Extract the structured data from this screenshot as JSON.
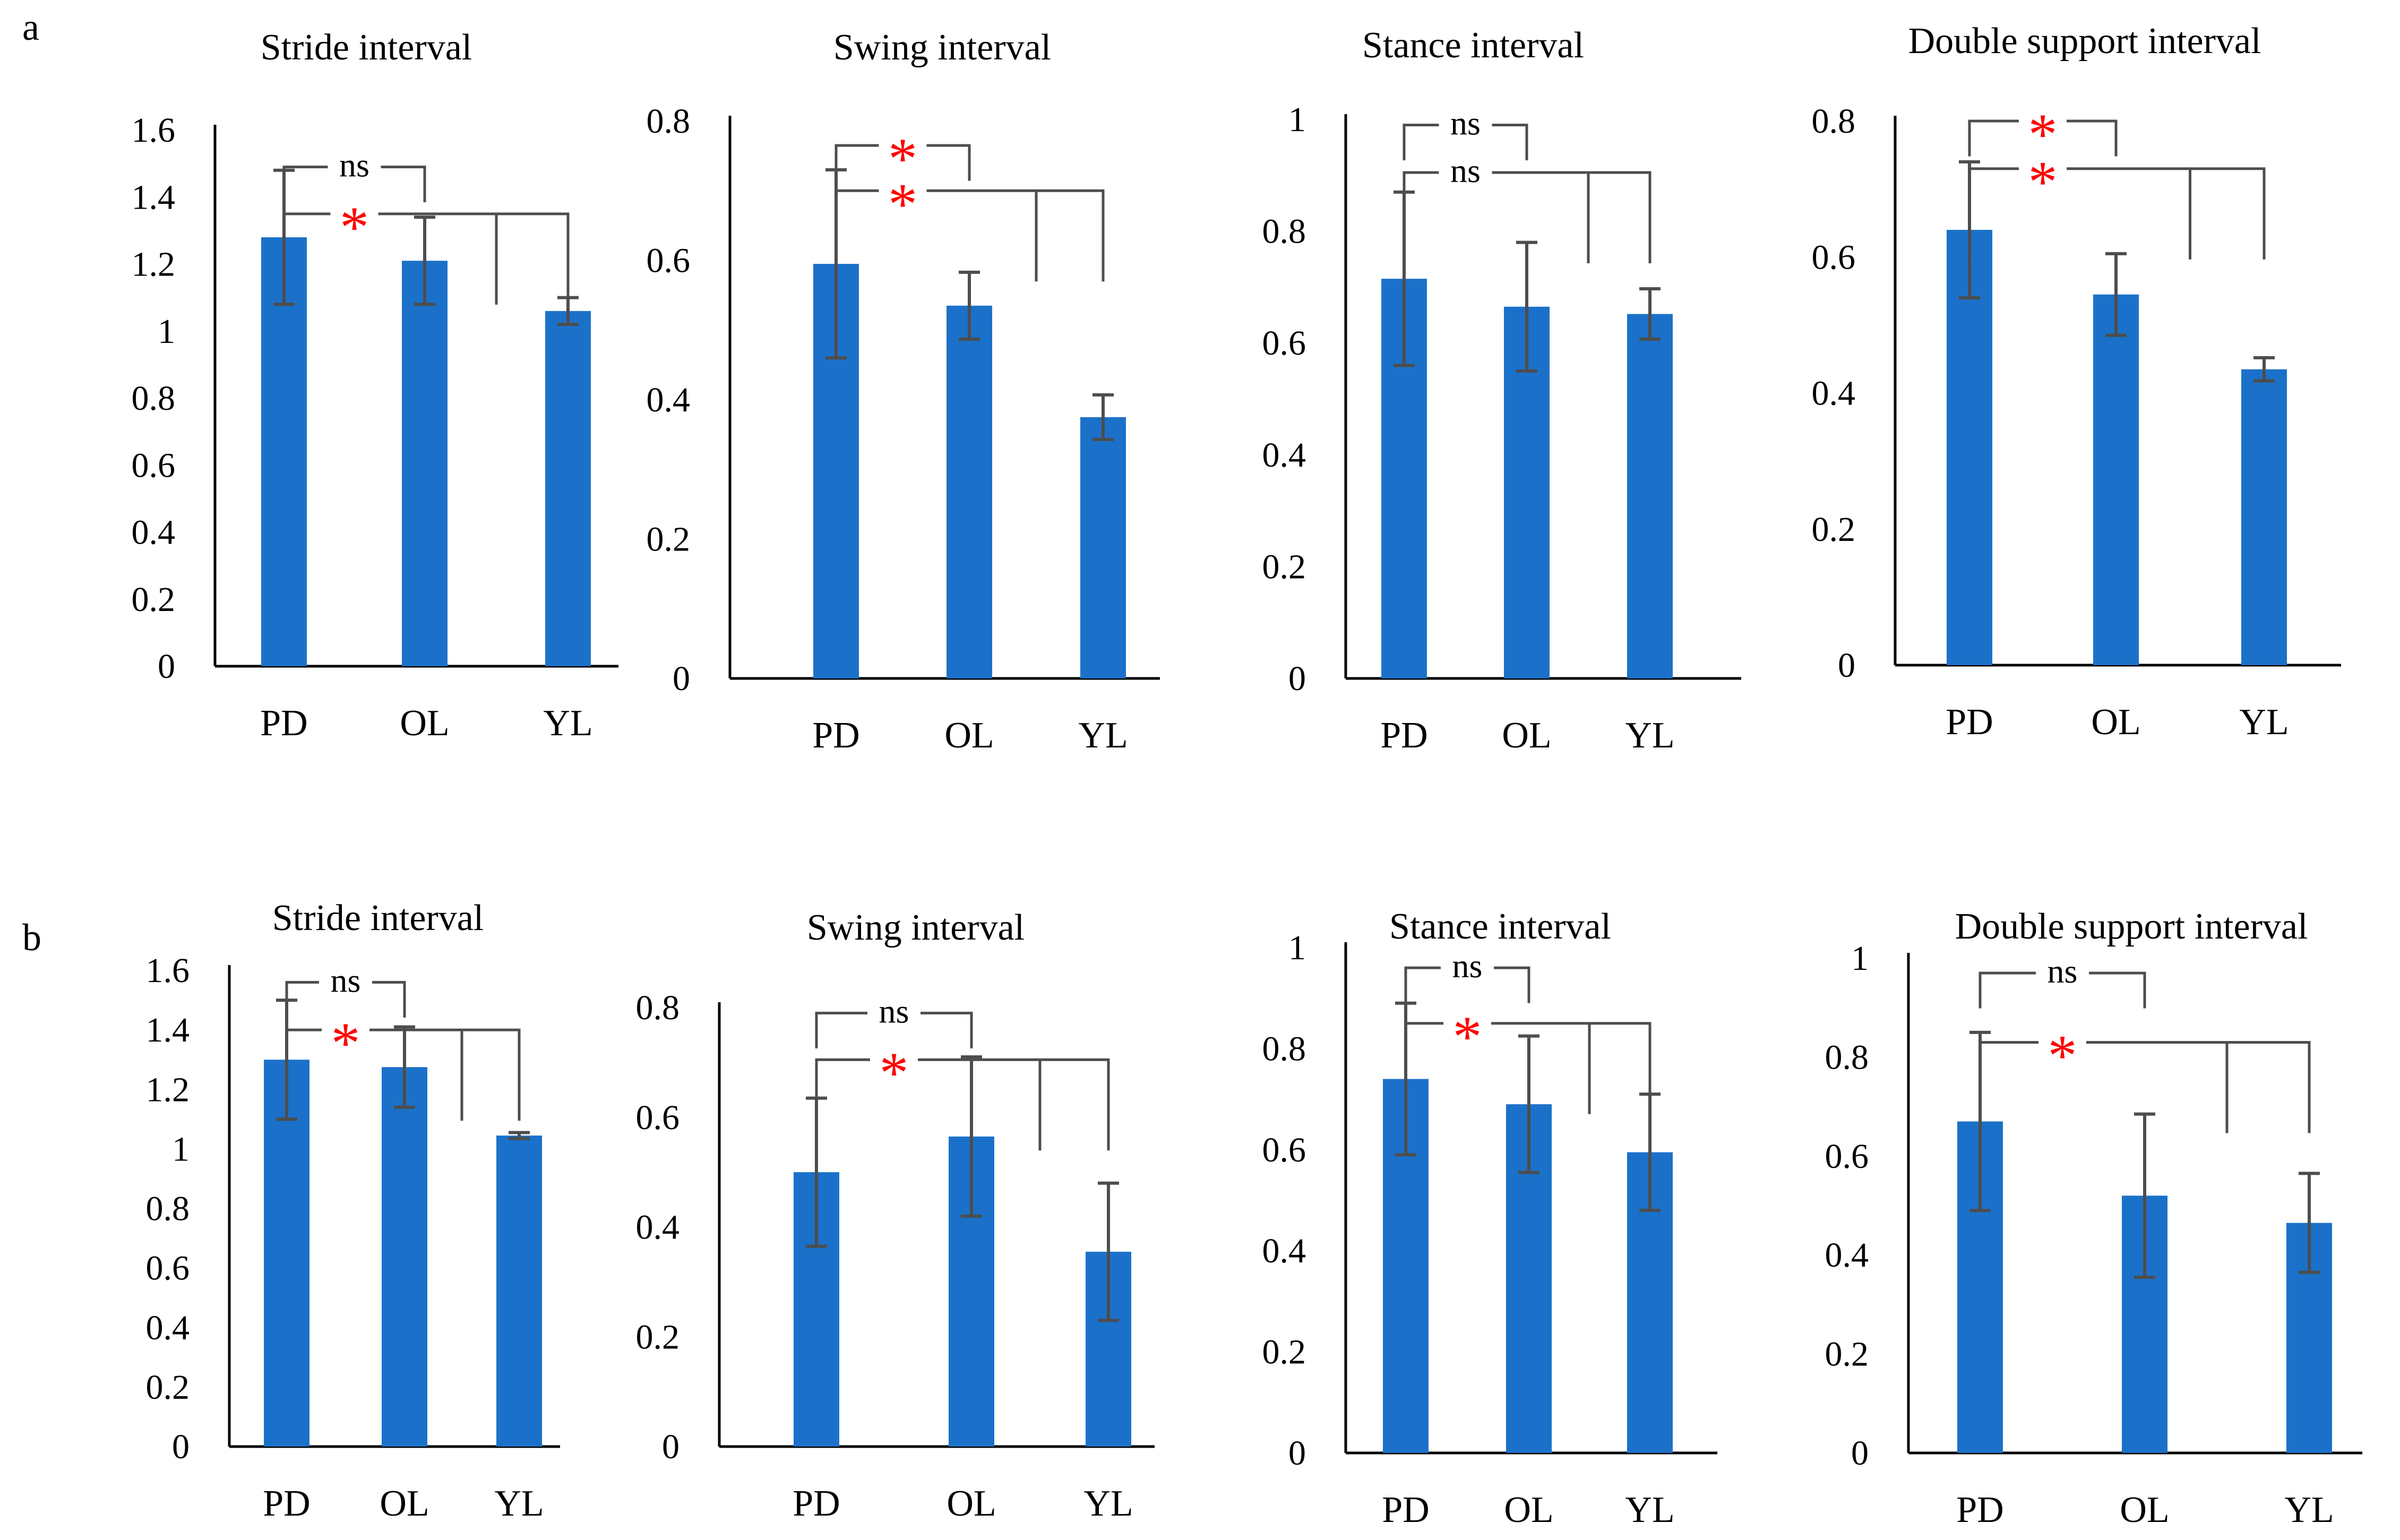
{
  "figure": {
    "panel_labels": {
      "a": "a",
      "b": "b"
    },
    "colors": {
      "bar": "#1B71C9",
      "axis": "#000000",
      "error_bar": "#4D4D4D",
      "bracket": "#4D4D4D",
      "sig_star": "#FF0000",
      "text": "#000000"
    }
  },
  "chart_data": [
    {
      "panel": "a",
      "type": "bar",
      "title": "Stride interval",
      "categories": [
        "PD",
        "OL",
        "YL"
      ],
      "values": [
        1.28,
        1.21,
        1.06
      ],
      "error": [
        0.2,
        0.13,
        0.04
      ],
      "ylim": [
        0,
        1.6
      ],
      "yticks": [
        "0",
        "0.2",
        "0.4",
        "0.6",
        "0.8",
        "1",
        "1.2",
        "1.4",
        "1.6"
      ],
      "xlabel": "",
      "ylabel": "",
      "grid": false,
      "annotations": [
        {
          "label": "ns",
          "from": 0,
          "to": 1,
          "level": 1.49,
          "kind": "pair"
        },
        {
          "label": "*",
          "from": 0,
          "to": [
            1,
            2
          ],
          "level": 1.35,
          "kind": "group"
        }
      ]
    },
    {
      "panel": "a",
      "type": "bar",
      "title": "Swing interval",
      "categories": [
        "PD",
        "OL",
        "YL"
      ],
      "values": [
        0.595,
        0.535,
        0.375
      ],
      "error": [
        0.135,
        0.048,
        0.032
      ],
      "ylim": [
        0,
        0.8
      ],
      "yticks": [
        "0",
        "0.2",
        "0.4",
        "0.6",
        "0.8"
      ],
      "xlabel": "",
      "ylabel": "",
      "grid": false,
      "annotations": [
        {
          "label": "*",
          "from": 0,
          "to": 1,
          "level": 0.765,
          "kind": "pair"
        },
        {
          "label": "*",
          "from": 0,
          "to": [
            1,
            2
          ],
          "level": 0.7,
          "kind": "group"
        }
      ]
    },
    {
      "panel": "a",
      "type": "bar",
      "title": "Stance interval",
      "categories": [
        "PD",
        "OL",
        "YL"
      ],
      "values": [
        0.715,
        0.665,
        0.652
      ],
      "error": [
        0.155,
        0.115,
        0.045
      ],
      "ylim": [
        0,
        1
      ],
      "yticks": [
        "0",
        "0.2",
        "0.4",
        "0.6",
        "0.8",
        "1"
      ],
      "xlabel": "",
      "ylabel": "",
      "grid": false,
      "annotations": [
        {
          "label": "ns",
          "from": 0,
          "to": 1,
          "level": 0.99,
          "kind": "pair"
        },
        {
          "label": "ns",
          "from": 0,
          "to": [
            1,
            2
          ],
          "level": 0.905,
          "kind": "group"
        }
      ]
    },
    {
      "panel": "a",
      "type": "bar",
      "title": "Double support interval",
      "categories": [
        "PD",
        "OL",
        "YL"
      ],
      "values": [
        0.64,
        0.545,
        0.435
      ],
      "error": [
        0.1,
        0.06,
        0.017
      ],
      "ylim": [
        0,
        0.8
      ],
      "yticks": [
        "0",
        "0.2",
        "0.4",
        "0.6",
        "0.8"
      ],
      "xlabel": "",
      "ylabel": "",
      "grid": false,
      "annotations": [
        {
          "label": "*",
          "from": 0,
          "to": 1,
          "level": 0.8,
          "kind": "pair"
        },
        {
          "label": "*",
          "from": 0,
          "to": [
            1,
            2
          ],
          "level": 0.73,
          "kind": "group"
        }
      ]
    },
    {
      "panel": "b",
      "type": "bar",
      "title": "Stride interval",
      "categories": [
        "PD",
        "OL",
        "YL"
      ],
      "values": [
        1.3,
        1.275,
        1.045
      ],
      "error": [
        0.2,
        0.135,
        0.01
      ],
      "ylim": [
        0,
        1.6
      ],
      "yticks": [
        "0",
        "0.2",
        "0.4",
        "0.6",
        "0.8",
        "1",
        "1.2",
        "1.4",
        "1.6"
      ],
      "xlabel": "",
      "ylabel": "",
      "grid": false,
      "annotations": [
        {
          "label": "ns",
          "from": 0,
          "to": 1,
          "level": 1.56,
          "kind": "pair"
        },
        {
          "label": "*",
          "from": 0,
          "to": [
            1,
            2
          ],
          "level": 1.4,
          "kind": "group"
        }
      ]
    },
    {
      "panel": "b",
      "type": "bar",
      "title": "Swing interval",
      "categories": [
        "PD",
        "OL",
        "YL"
      ],
      "values": [
        0.5,
        0.565,
        0.355
      ],
      "error": [
        0.135,
        0.145,
        0.125
      ],
      "ylim": [
        0,
        0.8
      ],
      "yticks": [
        "0",
        "0.2",
        "0.4",
        "0.6",
        "0.8"
      ],
      "xlabel": "",
      "ylabel": "",
      "grid": false,
      "annotations": [
        {
          "label": "ns",
          "from": 0,
          "to": 1,
          "level": 0.79,
          "kind": "pair"
        },
        {
          "label": "*",
          "from": 0,
          "to": [
            1,
            2
          ],
          "level": 0.705,
          "kind": "group"
        }
      ]
    },
    {
      "panel": "b",
      "type": "bar",
      "title": "Stance interval",
      "categories": [
        "PD",
        "OL",
        "YL"
      ],
      "values": [
        0.74,
        0.69,
        0.595
      ],
      "error": [
        0.15,
        0.135,
        0.115
      ],
      "ylim": [
        0,
        1
      ],
      "yticks": [
        "0",
        "0.2",
        "0.4",
        "0.6",
        "0.8",
        "1"
      ],
      "xlabel": "",
      "ylabel": "",
      "grid": false,
      "annotations": [
        {
          "label": "ns",
          "from": 0,
          "to": 1,
          "level": 0.96,
          "kind": "pair"
        },
        {
          "label": "*",
          "from": 0,
          "to": [
            1,
            2
          ],
          "level": 0.85,
          "kind": "group"
        }
      ]
    },
    {
      "panel": "b",
      "type": "bar",
      "title": "Double support interval",
      "categories": [
        "PD",
        "OL",
        "YL"
      ],
      "values": [
        0.67,
        0.52,
        0.465
      ],
      "error": [
        0.18,
        0.165,
        0.1
      ],
      "ylim": [
        0,
        1
      ],
      "yticks": [
        "0",
        "0.2",
        "0.4",
        "0.6",
        "0.8",
        "1"
      ],
      "xlabel": "",
      "ylabel": "",
      "grid": false,
      "annotations": [
        {
          "label": "ns",
          "from": 0,
          "to": 1,
          "level": 0.97,
          "kind": "pair"
        },
        {
          "label": "*",
          "from": 0,
          "to": [
            1,
            2
          ],
          "level": 0.83,
          "kind": "group"
        }
      ]
    }
  ]
}
